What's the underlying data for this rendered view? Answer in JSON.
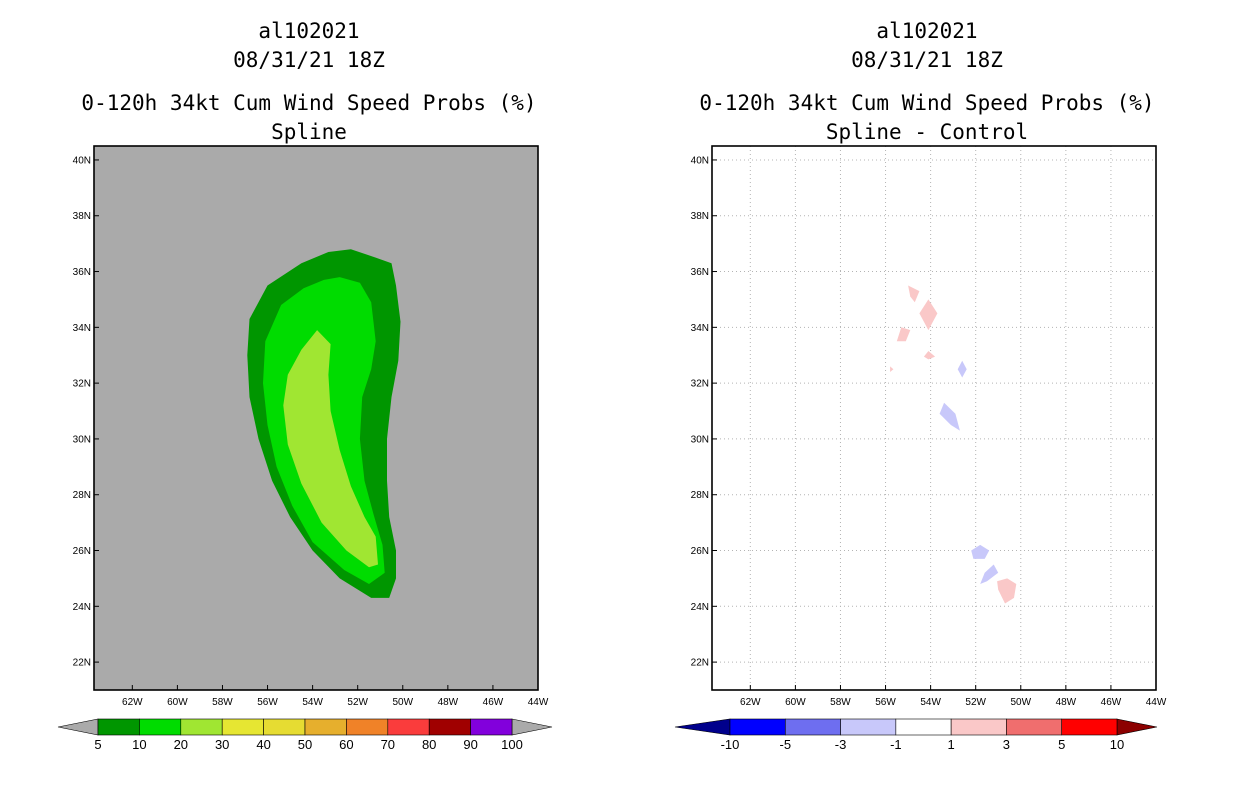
{
  "chart_data": [
    {
      "type": "heatmap",
      "title_lines": [
        "al102021",
        "08/31/21 18Z",
        "0-120h 34kt Cum Wind Speed Probs (%)",
        "Spline"
      ],
      "xlabel": "",
      "ylabel": "",
      "xlim": [
        -63.7,
        -44
      ],
      "ylim": [
        21,
        40.5
      ],
      "x_ticks": [
        {
          "value": -62,
          "label": "62W"
        },
        {
          "value": -60,
          "label": "60W"
        },
        {
          "value": -58,
          "label": "58W"
        },
        {
          "value": -56,
          "label": "56W"
        },
        {
          "value": -54,
          "label": "54W"
        },
        {
          "value": -52,
          "label": "52W"
        },
        {
          "value": -50,
          "label": "50W"
        },
        {
          "value": -48,
          "label": "48W"
        },
        {
          "value": -46,
          "label": "46W"
        },
        {
          "value": -44,
          "label": "44W"
        }
      ],
      "y_ticks": [
        {
          "value": 22,
          "label": "22N"
        },
        {
          "value": 24,
          "label": "24N"
        },
        {
          "value": 26,
          "label": "26N"
        },
        {
          "value": 28,
          "label": "28N"
        },
        {
          "value": 30,
          "label": "30N"
        },
        {
          "value": 32,
          "label": "32N"
        },
        {
          "value": 34,
          "label": "34N"
        },
        {
          "value": 36,
          "label": "36N"
        },
        {
          "value": 38,
          "label": "38N"
        },
        {
          "value": 40,
          "label": "40N"
        }
      ],
      "grid": false,
      "background_color": "#aaaaaa",
      "colorbar": {
        "labels": [
          "5",
          "10",
          "20",
          "30",
          "40",
          "50",
          "60",
          "70",
          "80",
          "90",
          "100"
        ],
        "colors": [
          "#009600",
          "#00dc00",
          "#a0e632",
          "#e6e632",
          "#e6dc32",
          "#e6af2d",
          "#f08228",
          "#fa3c3c",
          "#a00000",
          "#8200dc"
        ],
        "end_arrow_color": "#aaaaaa"
      },
      "contours": [
        {
          "level": "5-10",
          "color": "#009600",
          "polygon": [
            [
              -52.3,
              36.8
            ],
            [
              -51.2,
              36.5
            ],
            [
              -50.5,
              36.3
            ],
            [
              -50.3,
              35.5
            ],
            [
              -50.1,
              34.2
            ],
            [
              -50.2,
              32.8
            ],
            [
              -50.5,
              31.5
            ],
            [
              -50.7,
              30
            ],
            [
              -50.7,
              28.5
            ],
            [
              -50.6,
              27.2
            ],
            [
              -50.3,
              26
            ],
            [
              -50.3,
              25
            ],
            [
              -50.6,
              24.3
            ],
            [
              -51.4,
              24.3
            ],
            [
              -52.8,
              25
            ],
            [
              -54,
              26
            ],
            [
              -55,
              27.2
            ],
            [
              -55.8,
              28.5
            ],
            [
              -56.4,
              30
            ],
            [
              -56.8,
              31.5
            ],
            [
              -56.9,
              33
            ],
            [
              -56.8,
              34.3
            ],
            [
              -56,
              35.5
            ],
            [
              -54.5,
              36.3
            ],
            [
              -53.3,
              36.7
            ]
          ]
        },
        {
          "level": "10-20",
          "color": "#00dc00",
          "polygon": [
            [
              -52.8,
              35.8
            ],
            [
              -51.9,
              35.6
            ],
            [
              -51.4,
              34.9
            ],
            [
              -51.2,
              33.5
            ],
            [
              -51.4,
              32.5
            ],
            [
              -51.8,
              31.5
            ],
            [
              -51.9,
              30
            ],
            [
              -51.7,
              28.5
            ],
            [
              -51.3,
              27.3
            ],
            [
              -50.9,
              26.2
            ],
            [
              -50.8,
              25.2
            ],
            [
              -51.5,
              24.8
            ],
            [
              -52.6,
              25.3
            ],
            [
              -54,
              26.3
            ],
            [
              -54.9,
              27.6
            ],
            [
              -55.6,
              29
            ],
            [
              -56,
              30.5
            ],
            [
              -56.2,
              32
            ],
            [
              -56.1,
              33.5
            ],
            [
              -55.4,
              34.8
            ],
            [
              -54.4,
              35.4
            ],
            [
              -53.5,
              35.7
            ]
          ]
        },
        {
          "level": "20-30",
          "color": "#a0e632",
          "polygon": [
            [
              -53.8,
              33.9
            ],
            [
              -53.2,
              33.4
            ],
            [
              -53.3,
              32.3
            ],
            [
              -53.2,
              31
            ],
            [
              -52.8,
              29.6
            ],
            [
              -52.3,
              28.3
            ],
            [
              -51.7,
              27.2
            ],
            [
              -51.2,
              26.5
            ],
            [
              -51.1,
              25.5
            ],
            [
              -51.5,
              25.4
            ],
            [
              -52.5,
              26
            ],
            [
              -53.6,
              27
            ],
            [
              -54.5,
              28.4
            ],
            [
              -55.1,
              29.8
            ],
            [
              -55.3,
              31.2
            ],
            [
              -55.1,
              32.3
            ],
            [
              -54.5,
              33.2
            ]
          ]
        }
      ]
    },
    {
      "type": "heatmap",
      "title_lines": [
        "al102021",
        "08/31/21 18Z",
        "0-120h 34kt Cum Wind Speed Probs (%)",
        "Spline - Control"
      ],
      "xlabel": "",
      "ylabel": "",
      "xlim": [
        -63.7,
        -44
      ],
      "ylim": [
        21,
        40.5
      ],
      "x_ticks": [
        {
          "value": -62,
          "label": "62W"
        },
        {
          "value": -60,
          "label": "60W"
        },
        {
          "value": -58,
          "label": "58W"
        },
        {
          "value": -56,
          "label": "56W"
        },
        {
          "value": -54,
          "label": "54W"
        },
        {
          "value": -52,
          "label": "52W"
        },
        {
          "value": -50,
          "label": "50W"
        },
        {
          "value": -48,
          "label": "48W"
        },
        {
          "value": -46,
          "label": "46W"
        },
        {
          "value": -44,
          "label": "44W"
        }
      ],
      "y_ticks": [
        {
          "value": 22,
          "label": "22N"
        },
        {
          "value": 24,
          "label": "24N"
        },
        {
          "value": 26,
          "label": "26N"
        },
        {
          "value": 28,
          "label": "28N"
        },
        {
          "value": 30,
          "label": "30N"
        },
        {
          "value": 32,
          "label": "32N"
        },
        {
          "value": 34,
          "label": "34N"
        },
        {
          "value": 36,
          "label": "36N"
        },
        {
          "value": 38,
          "label": "38N"
        },
        {
          "value": 40,
          "label": "40N"
        }
      ],
      "grid": true,
      "background_color": "#ffffff",
      "colorbar": {
        "labels": [
          "-10",
          "-5",
          "-3",
          "-1",
          "1",
          "3",
          "5",
          "10"
        ],
        "colors": [
          "#0000ff",
          "#6e6ef0",
          "#c8c8fa",
          "#ffffff",
          "#fac8c8",
          "#f06e6e",
          "#ff0000"
        ],
        "start_arrow_color": "#00008c",
        "end_arrow_color": "#8c0000"
      },
      "contours": [
        {
          "level": "1-3",
          "color": "#fac8c8",
          "polygon": [
            [
              -55,
              35.5
            ],
            [
              -54.5,
              35.3
            ],
            [
              -54.7,
              34.9
            ],
            [
              -54.9,
              35.1
            ]
          ]
        },
        {
          "level": "1-3",
          "color": "#fac8c8",
          "polygon": [
            [
              -54.1,
              35
            ],
            [
              -53.7,
              34.5
            ],
            [
              -54.1,
              33.9
            ],
            [
              -54.5,
              34.5
            ]
          ]
        },
        {
          "level": "1-3",
          "color": "#fac8c8",
          "polygon": [
            [
              -55.3,
              34
            ],
            [
              -54.9,
              33.9
            ],
            [
              -55.1,
              33.5
            ],
            [
              -55.5,
              33.5
            ]
          ]
        },
        {
          "level": "1-3",
          "color": "#fac8c8",
          "polygon": [
            [
              -54.1,
              33.15
            ],
            [
              -53.8,
              32.95
            ],
            [
              -54.1,
              32.85
            ],
            [
              -54.3,
              32.95
            ]
          ]
        },
        {
          "level": "1-3",
          "color": "#fac8c8",
          "polygon": [
            [
              -55.8,
              32.6
            ],
            [
              -55.65,
              32.5
            ],
            [
              -55.8,
              32.4
            ]
          ]
        },
        {
          "level": "1-3",
          "color": "#fac8c8",
          "polygon": [
            [
              -50.6,
              25
            ],
            [
              -50.2,
              24.8
            ],
            [
              -50.3,
              24.3
            ],
            [
              -50.7,
              24.1
            ],
            [
              -51,
              24.6
            ],
            [
              -51.05,
              24.9
            ]
          ]
        },
        {
          "level": "-3--1",
          "color": "#c8c8fa",
          "polygon": [
            [
              -52.6,
              32.8
            ],
            [
              -52.4,
              32.5
            ],
            [
              -52.6,
              32.2
            ],
            [
              -52.8,
              32.5
            ]
          ]
        },
        {
          "level": "-3--1",
          "color": "#c8c8fa",
          "polygon": [
            [
              -53.4,
              31.3
            ],
            [
              -52.9,
              30.9
            ],
            [
              -52.7,
              30.3
            ],
            [
              -53.1,
              30.5
            ],
            [
              -53.6,
              30.9
            ]
          ]
        },
        {
          "level": "-3--1",
          "color": "#c8c8fa",
          "polygon": [
            [
              -51.8,
              26.2
            ],
            [
              -51.4,
              26
            ],
            [
              -51.6,
              25.7
            ],
            [
              -52.1,
              25.7
            ],
            [
              -52.2,
              26
            ]
          ]
        },
        {
          "level": "-3--1",
          "color": "#c8c8fa",
          "polygon": [
            [
              -51.2,
              25.5
            ],
            [
              -51,
              25.2
            ],
            [
              -51.5,
              24.9
            ],
            [
              -51.8,
              24.8
            ],
            [
              -51.6,
              25.2
            ]
          ]
        }
      ]
    }
  ]
}
